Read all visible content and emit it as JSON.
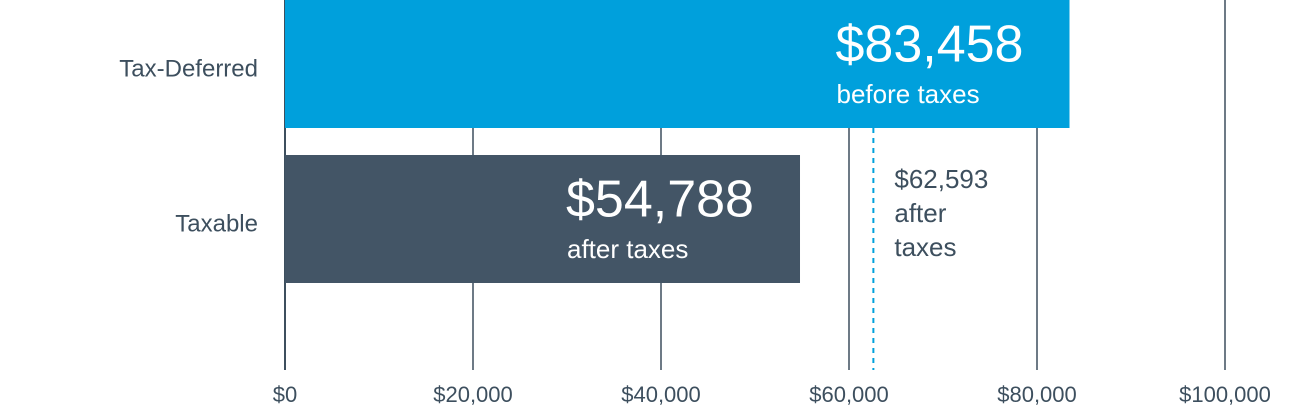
{
  "chart_data": {
    "type": "bar",
    "orientation": "horizontal",
    "categories": [
      "Tax-Deferred",
      "Taxable"
    ],
    "values": [
      83458,
      54788
    ],
    "value_labels": [
      "$83,458",
      "$54,788"
    ],
    "sublabels": [
      "before taxes",
      "after taxes"
    ],
    "colors": [
      "#00a0dc",
      "#435566"
    ],
    "xlim": [
      0,
      100000
    ],
    "xticks": [
      {
        "value": 0,
        "label": "$0"
      },
      {
        "value": 20000,
        "label": "$20,000"
      },
      {
        "value": 40000,
        "label": "$40,000"
      },
      {
        "value": 60000,
        "label": "$60,000"
      },
      {
        "value": 80000,
        "label": "$80,000"
      },
      {
        "value": 100000,
        "label": "$100,000"
      }
    ],
    "grid": true,
    "annotation": {
      "value": 62593,
      "label": "$62,593",
      "text": "after taxes",
      "color": "#00a0dc"
    }
  }
}
